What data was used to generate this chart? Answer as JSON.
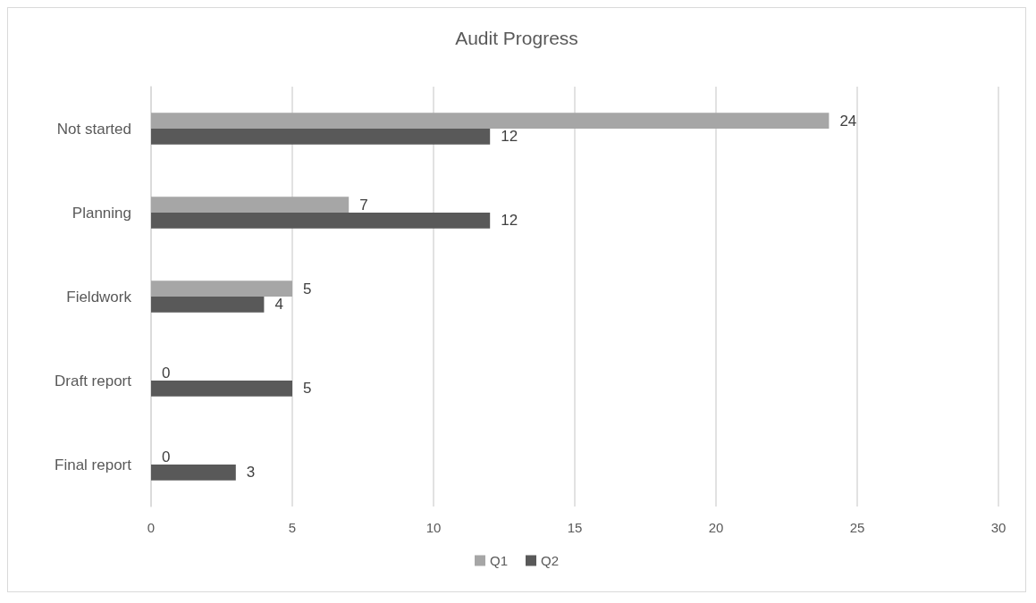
{
  "chart_data": {
    "type": "bar",
    "orientation": "horizontal",
    "title": "Audit Progress",
    "categories": [
      "Not started",
      "Planning",
      "Fieldwork",
      "Draft report",
      "Final report"
    ],
    "series": [
      {
        "name": "Q1",
        "color": "#a6a6a6",
        "values": [
          24,
          7,
          5,
          0,
          0
        ]
      },
      {
        "name": "Q2",
        "color": "#595959",
        "values": [
          12,
          12,
          4,
          5,
          3
        ]
      }
    ],
    "xlim": [
      0,
      30
    ],
    "xticks": [
      0,
      5,
      10,
      15,
      20,
      25,
      30
    ],
    "grid": "x",
    "legend": "bottom",
    "data_labels": true
  }
}
